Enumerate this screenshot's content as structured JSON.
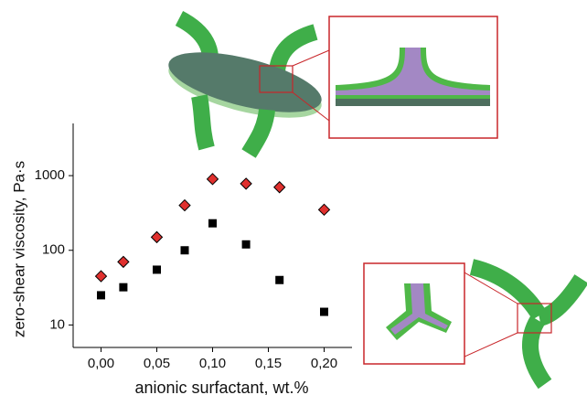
{
  "chart_data": {
    "type": "scatter",
    "xlabel": "anionic surfactant, wt.%",
    "ylabel": "zero-shear viscosity, Pa·s",
    "xlim": [
      -0.025,
      0.225
    ],
    "xticks": [
      {
        "value": 0,
        "label": "0,00"
      },
      {
        "value": 0.05,
        "label": "0,05"
      },
      {
        "value": 0.1,
        "label": "0,10"
      },
      {
        "value": 0.15,
        "label": "0,15"
      },
      {
        "value": 0.2,
        "label": "0,20"
      }
    ],
    "ylim": [
      5,
      5000
    ],
    "yticks": [
      10,
      100,
      1000
    ],
    "log_y": true,
    "series": [
      {
        "color": "#e0302e",
        "marker": "diamond",
        "x": [
          0,
          0.02,
          0.05,
          0.075,
          0.1,
          0.13,
          0.16,
          0.2
        ],
        "values": [
          45,
          70,
          150,
          400,
          900,
          780,
          700,
          350
        ]
      },
      {
        "color": "#000000",
        "marker": "square",
        "x": [
          0,
          0.02,
          0.05,
          0.075,
          0.1,
          0.13,
          0.16,
          0.2
        ],
        "values": [
          25,
          32,
          55,
          100,
          230,
          120,
          40,
          15
        ]
      }
    ]
  }
}
